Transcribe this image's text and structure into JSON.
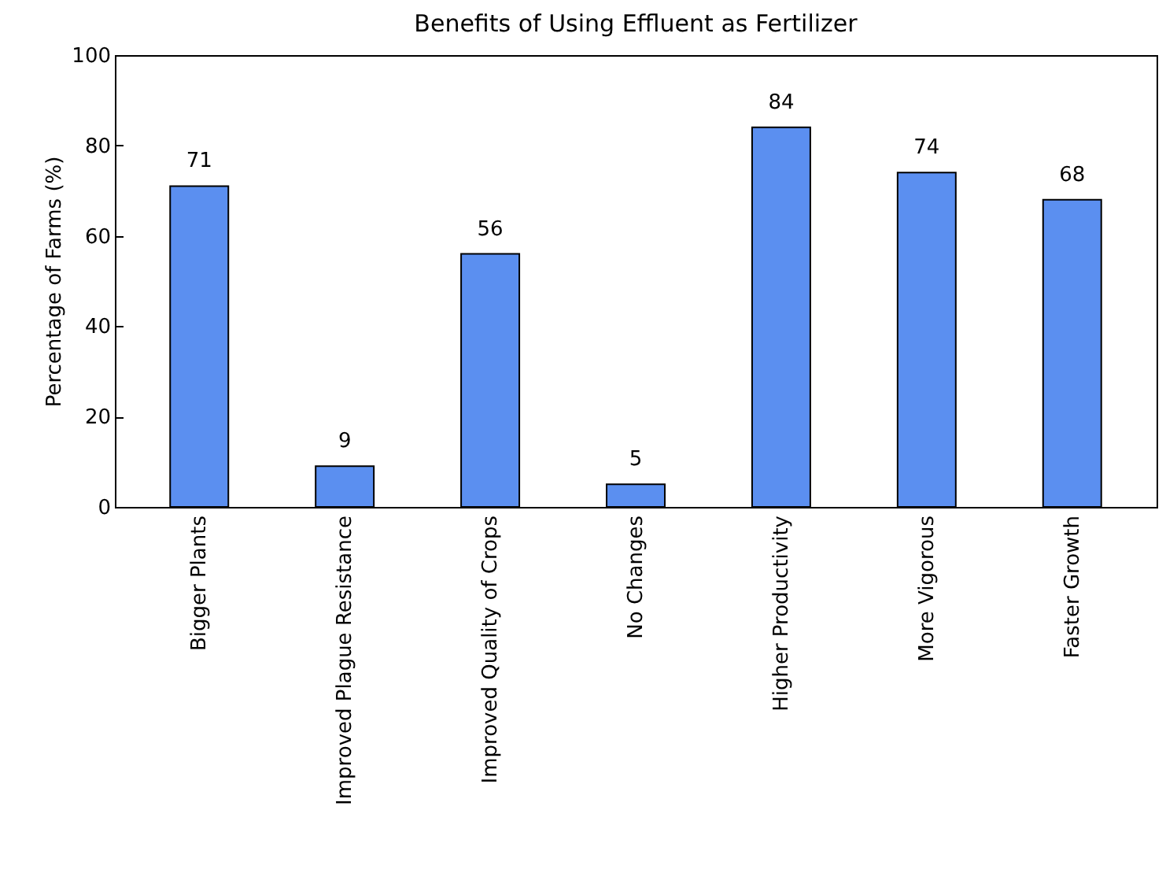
{
  "chart_data": {
    "type": "bar",
    "title": "Benefits of Using Effluent as Fertilizer",
    "ylabel": "Percentage of Farms (%)",
    "categories": [
      "Bigger Plants",
      "Improved Plague Resistance",
      "Improved Quality of Crops",
      "No Changes",
      "Higher Productivity",
      "More Vigorous",
      "Faster Growth"
    ],
    "values": [
      71,
      9,
      56,
      5,
      84,
      74,
      68
    ],
    "color": "#5b8ff0",
    "ylim": [
      0,
      100
    ],
    "yticks": [
      0,
      20,
      40,
      60,
      80,
      100
    ],
    "grid": false,
    "data_labels": true
  }
}
